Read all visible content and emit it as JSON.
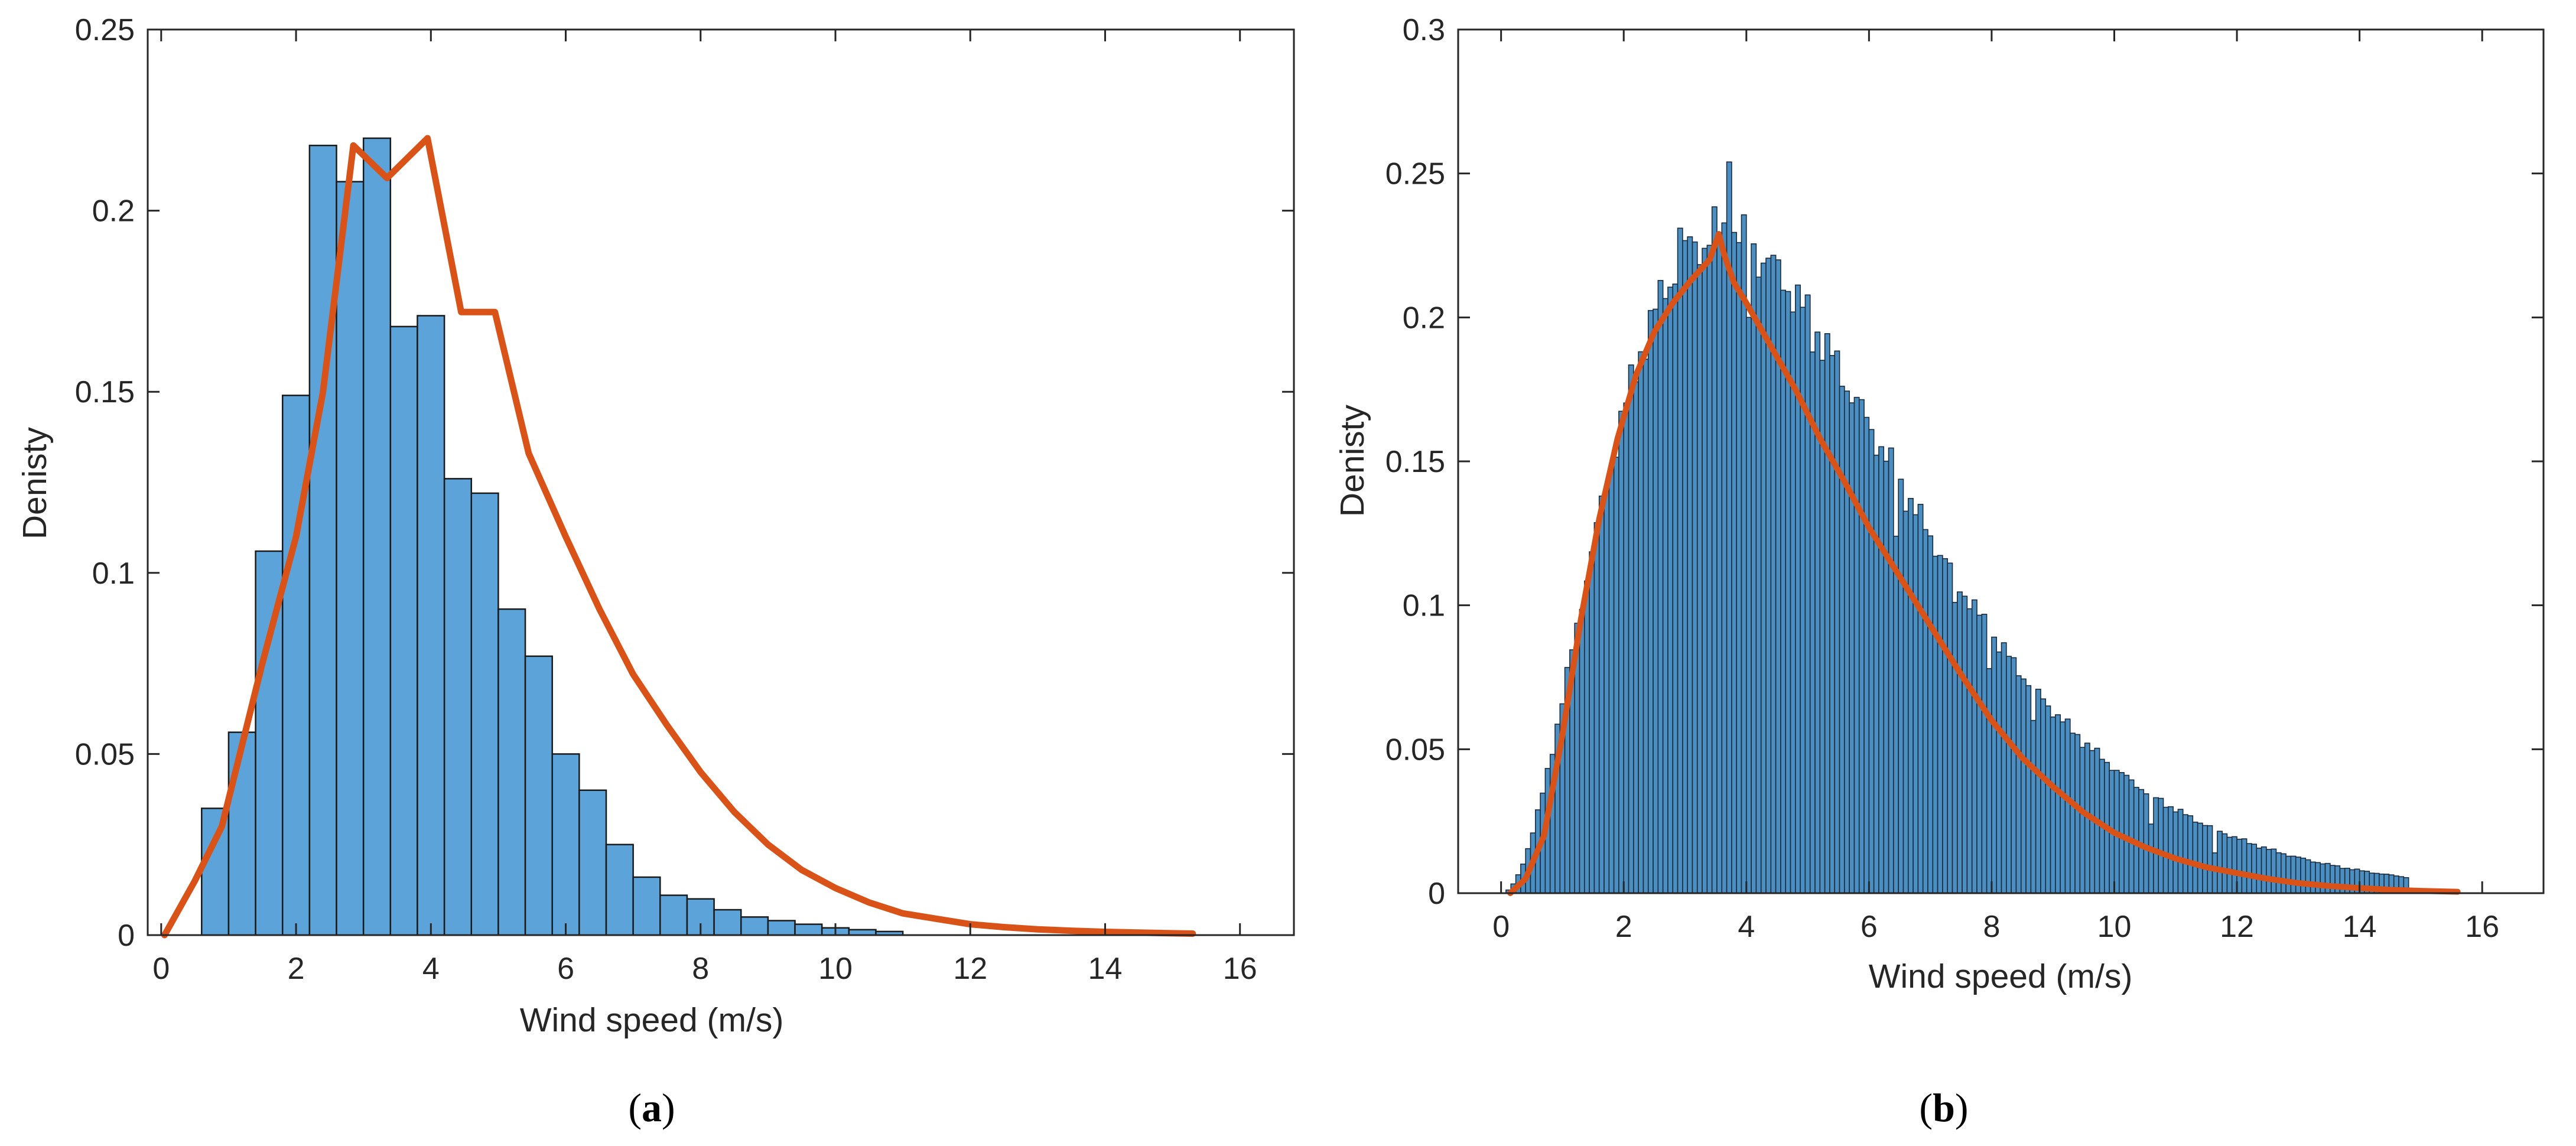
{
  "colors": {
    "bar_fill": "#5ba3d8",
    "bar_edge": "#1a1a1a",
    "bar_fill_b": "#4a8ec2",
    "bar_edge_b": "#1b2a3a",
    "curve": "#d95319",
    "axis": "#262626",
    "text": "#262626"
  },
  "chart_data": [
    {
      "id": "a",
      "type": "bar",
      "subtype": "histogram_with_density_curve",
      "caption_letter": "a",
      "xlabel": "Wind speed (m/s)",
      "ylabel": "Denisty",
      "xlim": [
        -0.2,
        16.8
      ],
      "ylim": [
        0,
        0.25
      ],
      "xticks": [
        0,
        2,
        4,
        6,
        8,
        10,
        12,
        14,
        16
      ],
      "xtick_labels": [
        "0",
        "2",
        "4",
        "6",
        "8",
        "10",
        "12",
        "14",
        "16"
      ],
      "yticks": [
        0,
        0.05,
        0.1,
        0.15,
        0.2,
        0.25
      ],
      "ytick_labels": [
        "0",
        "0.05",
        "0.1",
        "0.15",
        "0.2",
        "0.25"
      ],
      "bin_start": 0.6,
      "bin_width": 0.4,
      "values": [
        0.035,
        0.056,
        0.106,
        0.149,
        0.218,
        0.208,
        0.22,
        0.168,
        0.171,
        0.126,
        0.122,
        0.09,
        0.077,
        0.05,
        0.04,
        0.025,
        0.016,
        0.011,
        0.01,
        0.007,
        0.005,
        0.004,
        0.003,
        0.002,
        0.0015,
        0.001
      ],
      "curve": {
        "x": [
          0.05,
          0.5,
          0.9,
          1.5,
          2.0,
          2.4,
          2.85,
          3.35,
          3.95,
          4.45,
          4.95,
          5.45,
          6.0,
          6.5,
          7.0,
          7.5,
          8.0,
          8.5,
          9.0,
          9.5,
          10.0,
          10.5,
          11.0,
          11.5,
          12.0,
          12.5,
          13.0,
          13.5,
          14.0,
          14.5,
          15.0,
          15.3
        ],
        "y": [
          0.0,
          0.015,
          0.03,
          0.075,
          0.11,
          0.15,
          0.218,
          0.209,
          0.22,
          0.172,
          0.172,
          0.133,
          0.11,
          0.09,
          0.072,
          0.058,
          0.045,
          0.034,
          0.025,
          0.018,
          0.013,
          0.009,
          0.006,
          0.0045,
          0.003,
          0.0022,
          0.0016,
          0.0012,
          0.0009,
          0.0007,
          0.0005,
          0.0004
        ]
      }
    },
    {
      "id": "b",
      "type": "bar",
      "subtype": "histogram_with_density_curve",
      "caption_letter": "b",
      "xlabel": "Wind speed (m/s)",
      "ylabel": "Denisty",
      "xlim": [
        -0.7,
        17.0
      ],
      "ylim": [
        0,
        0.3
      ],
      "xticks": [
        0,
        2,
        4,
        6,
        8,
        10,
        12,
        14,
        16
      ],
      "xtick_labels": [
        "0",
        "2",
        "4",
        "6",
        "8",
        "10",
        "12",
        "14",
        "16"
      ],
      "yticks": [
        0,
        0.05,
        0.1,
        0.15,
        0.2,
        0.25,
        0.3
      ],
      "ytick_labels": [
        "0",
        "0.05",
        "0.1",
        "0.15",
        "0.2",
        "0.25",
        "0.3"
      ],
      "bin_start": 0.0,
      "bin_width": 0.08,
      "bin_end": 14.8,
      "density_model": {
        "form": "gamma_shape",
        "scale": 0.229,
        "mode": 3.6,
        "k": 2.2
      },
      "spikes": [
        {
          "x": 2.88,
          "value": 0.231
        },
        {
          "x": 3.04,
          "value": 0.228
        },
        {
          "x": 3.28,
          "value": 0.224
        },
        {
          "x": 3.52,
          "value": 0.226
        },
        {
          "x": 3.68,
          "value": 0.254
        },
        {
          "x": 3.84,
          "value": 0.226
        },
        {
          "x": 4.0,
          "value": 0.2
        },
        {
          "x": 4.16,
          "value": 0.214
        },
        {
          "x": 5.04,
          "value": 0.188
        },
        {
          "x": 6.4,
          "value": 0.124
        },
        {
          "x": 7.36,
          "value": 0.101
        },
        {
          "x": 7.92,
          "value": 0.078
        },
        {
          "x": 8.64,
          "value": 0.06
        },
        {
          "x": 10.4,
          "value": 0.036
        },
        {
          "x": 10.56,
          "value": 0.024
        },
        {
          "x": 11.6,
          "value": 0.014
        }
      ],
      "curve": {
        "x": [
          0.15,
          0.4,
          0.7,
          1.0,
          1.3,
          1.6,
          1.9,
          2.2,
          2.5,
          2.8,
          3.1,
          3.4,
          3.55,
          3.65,
          3.8,
          4.0,
          4.4,
          4.8,
          5.2,
          5.6,
          6.0,
          6.5,
          7.0,
          7.5,
          8.0,
          8.5,
          9.0,
          9.5,
          10.0,
          10.5,
          11.0,
          11.5,
          12.0,
          12.5,
          13.0,
          13.5,
          14.0,
          14.5,
          15.0,
          15.6
        ],
        "y": [
          0.0,
          0.005,
          0.02,
          0.055,
          0.095,
          0.13,
          0.158,
          0.18,
          0.195,
          0.205,
          0.213,
          0.22,
          0.229,
          0.221,
          0.212,
          0.205,
          0.19,
          0.175,
          0.158,
          0.143,
          0.127,
          0.11,
          0.093,
          0.076,
          0.06,
          0.047,
          0.037,
          0.028,
          0.021,
          0.016,
          0.012,
          0.009,
          0.007,
          0.005,
          0.0035,
          0.0025,
          0.0018,
          0.0012,
          0.0008,
          0.0005
        ]
      }
    }
  ]
}
